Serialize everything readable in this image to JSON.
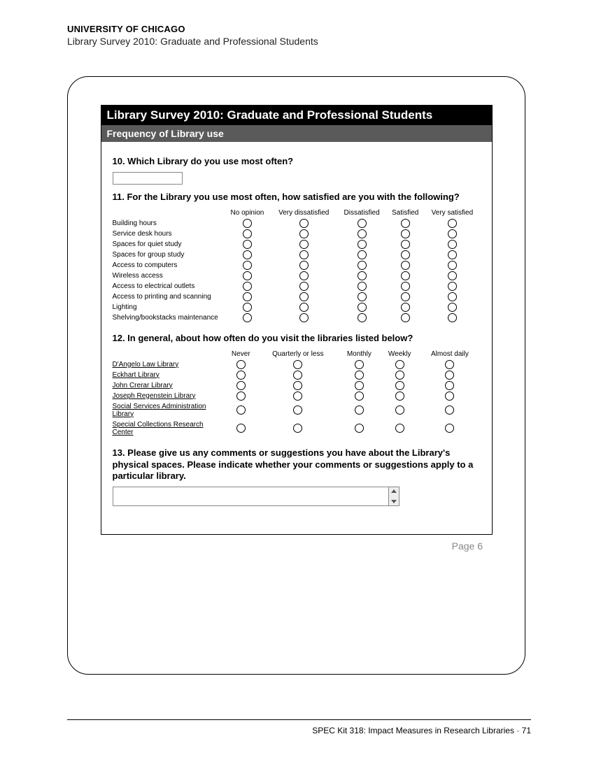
{
  "header": {
    "university": "UNIVERSITY OF CHICAGO",
    "subtitle": "Library Survey 2010: Graduate and Professional Students"
  },
  "survey": {
    "title": "Library Survey 2010: Graduate and Professional Students",
    "section": "Frequency of Library use",
    "q10": {
      "text": "10. Which Library do you use most often?"
    },
    "q11": {
      "text": "11. For the Library you use most often, how satisfied are you with the following?",
      "columns": [
        "No opinion",
        "Very dissatisfied",
        "Dissatisfied",
        "Satisfied",
        "Very satisfied"
      ],
      "rows": [
        "Building hours",
        "Service desk hours",
        "Spaces for quiet study",
        "Spaces for group study",
        "Access to computers",
        "Wireless access",
        "Access to electrical outlets",
        "Access to printing and scanning",
        "Lighting",
        "Shelving/bookstacks maintenance"
      ]
    },
    "q12": {
      "text": "12. In general, about how often do you visit the libraries listed below?",
      "columns": [
        "Never",
        "Quarterly or less",
        "Monthly",
        "Weekly",
        "Almost daily"
      ],
      "rows": [
        "D'Angelo Law Library",
        "Eckhart Library",
        "John Crerar Library",
        "Joseph Regenstein Library",
        "Social Services Administration Library",
        "Special Collections Research Center"
      ]
    },
    "q13": {
      "text": "13. Please give us any comments or suggestions you have about the Library's physical spaces. Please indicate whether your comments or suggestions apply to a particular library."
    },
    "page_label": "Page 6"
  },
  "footer": {
    "text": "SPEC Kit 318:  Impact Measures in Research Libraries  ·  71"
  }
}
